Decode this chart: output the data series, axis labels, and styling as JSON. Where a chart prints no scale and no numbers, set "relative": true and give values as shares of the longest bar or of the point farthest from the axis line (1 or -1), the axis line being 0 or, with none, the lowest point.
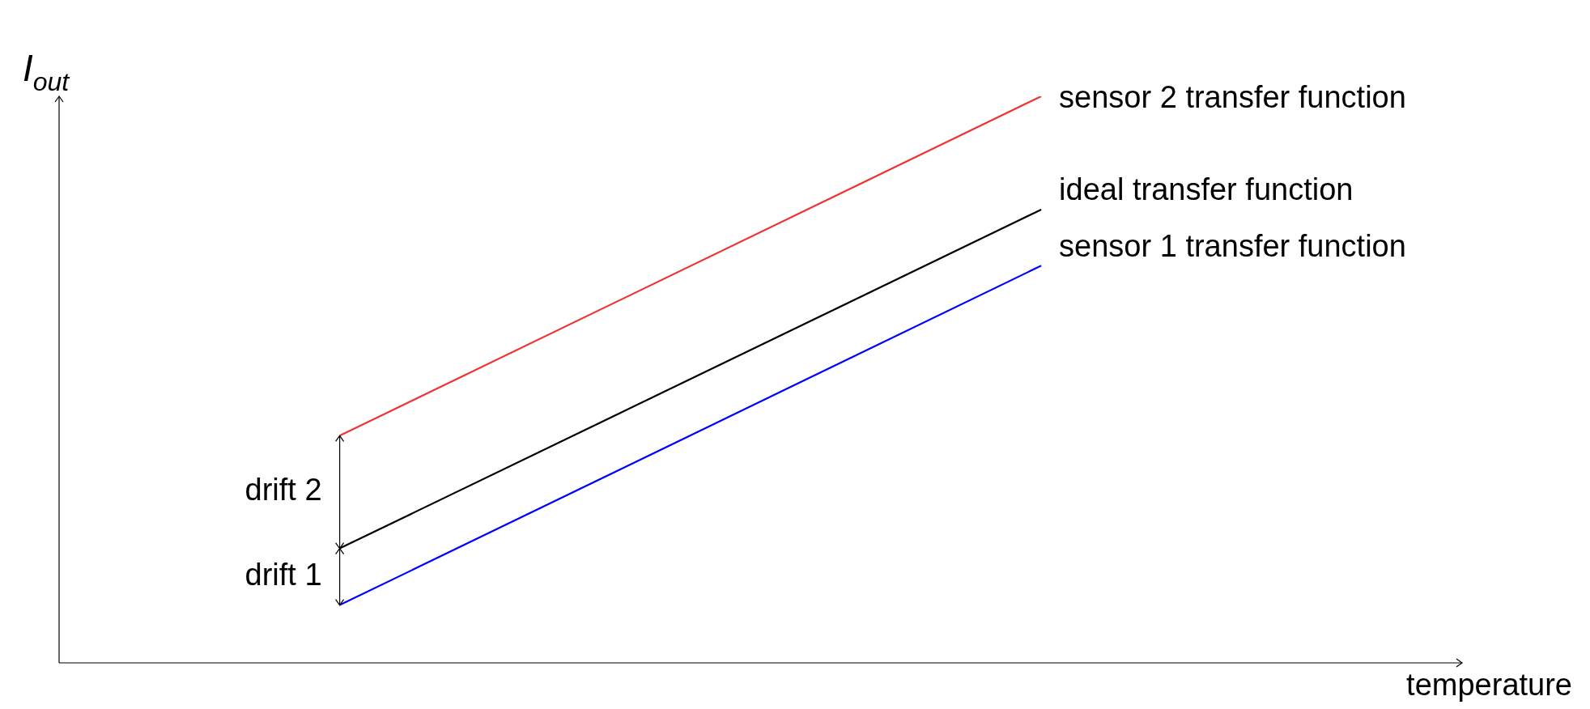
{
  "chart_data": {
    "type": "line",
    "relative": true,
    "ylabel": "I$_{out}$",
    "xlabel": "temperature",
    "grid": false,
    "marker": "none",
    "categories": [
      null,
      null,
      null,
      null,
      null,
      null,
      null,
      null,
      null,
      null,
      null
    ],
    "series": [
      {
        "name": "sensor 2 transfer function",
        "color": "#ee3333",
        "values": [
          null,
          null,
          0.401,
          null,
          null,
          null,
          null,
          1,
          null,
          null,
          null
        ]
      },
      {
        "name": "ideal transfer function",
        "color": "#000000",
        "values": [
          null,
          null,
          0.202,
          null,
          null,
          null,
          null,
          0.8,
          null,
          null,
          null
        ]
      },
      {
        "name": "sensor 1 transfer function",
        "color": "#0000ff",
        "values": [
          null,
          null,
          0.102,
          null,
          null,
          null,
          null,
          0.701,
          null,
          null,
          null
        ]
      }
    ],
    "annotations": [
      "drift 2",
      "drift 1"
    ]
  }
}
